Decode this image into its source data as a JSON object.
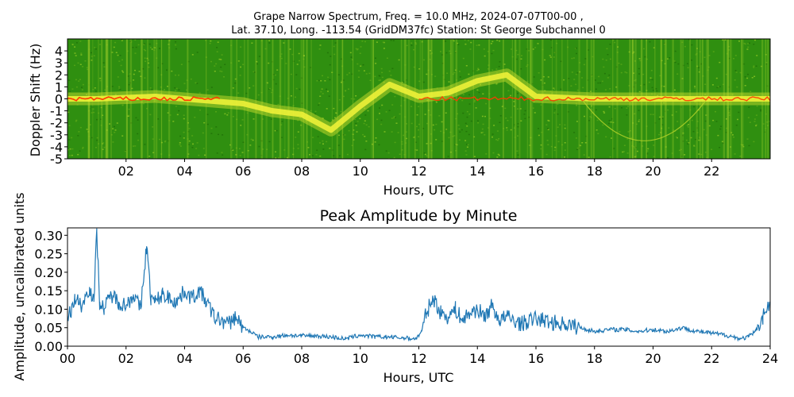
{
  "figure": {
    "title_line1": "Grape Narrow Spectrum, Freq. = 10.0 MHz, 2024-07-07T00-00 ,",
    "title_line2": "Lat.  37.10, Long. -113.54 (GridDM37fc) Station: St George Subchannel 0"
  },
  "chart_data": [
    {
      "type": "heatmap",
      "title": "",
      "xlabel": "Hours, UTC",
      "ylabel": "Doppler Shift (Hz)",
      "xlim": [
        0,
        24
      ],
      "ylim": [
        -5,
        5
      ],
      "x_ticks": [
        "02",
        "04",
        "06",
        "08",
        "10",
        "12",
        "14",
        "16",
        "18",
        "20",
        "22"
      ],
      "x_tick_values": [
        2,
        4,
        6,
        8,
        10,
        12,
        14,
        16,
        18,
        20,
        22
      ],
      "y_ticks": [
        "4",
        "3",
        "2",
        "1",
        "0",
        "-1",
        "-2",
        "-3",
        "-4",
        "-5"
      ],
      "y_tick_values": [
        4,
        3,
        2,
        1,
        0,
        -1,
        -2,
        -3,
        -4,
        -5
      ],
      "colors": {
        "background": "#2f8f10",
        "mid": "#b9d62a",
        "high": "#f4f43a",
        "peak": "#ff3a00"
      },
      "carrier_trace": {
        "x": [
          0,
          1,
          2,
          3,
          4,
          5,
          6,
          7,
          8,
          9,
          10,
          11,
          12,
          13,
          14,
          15,
          16,
          17,
          18,
          19,
          20,
          21,
          22,
          23,
          24
        ],
        "y": [
          0.0,
          0.0,
          0.1,
          0.2,
          0.0,
          -0.2,
          -0.4,
          -1.0,
          -1.3,
          -2.6,
          -0.6,
          1.2,
          0.2,
          0.5,
          1.5,
          2.0,
          0.2,
          0.1,
          0.0,
          0.0,
          0.0,
          0.0,
          0.0,
          0.0,
          0.0
        ]
      }
    },
    {
      "type": "line",
      "title": "Peak Amplitude by Minute",
      "xlabel": "Hours, UTC",
      "ylabel": "Amplitude, uncalibrated units",
      "xlim": [
        0,
        24
      ],
      "ylim": [
        0,
        0.32
      ],
      "x_ticks": [
        "00",
        "02",
        "04",
        "06",
        "08",
        "10",
        "12",
        "14",
        "16",
        "18",
        "20",
        "22",
        "24"
      ],
      "x_tick_values": [
        0,
        2,
        4,
        6,
        8,
        10,
        12,
        14,
        16,
        18,
        20,
        22,
        24
      ],
      "y_ticks": [
        "0.00",
        "0.05",
        "0.10",
        "0.15",
        "0.20",
        "0.25",
        "0.30"
      ],
      "y_tick_values": [
        0,
        0.05,
        0.1,
        0.15,
        0.2,
        0.25,
        0.3
      ],
      "line_color": "#1f77b4",
      "series": [
        {
          "x": [
            0,
            0.25,
            0.5,
            0.75,
            0.9,
            1.0,
            1.1,
            1.25,
            1.5,
            1.75,
            2.0,
            2.25,
            2.5,
            2.7,
            2.85,
            3.0,
            3.25,
            3.5,
            3.75,
            4.0,
            4.25,
            4.5,
            4.75,
            5.0,
            5.25,
            5.5,
            5.75,
            6.0,
            6.25,
            6.5,
            7.0,
            7.5,
            8.0,
            8.5,
            9.0,
            9.5,
            10.0,
            10.5,
            11.0,
            11.5,
            11.9,
            12.1,
            12.25,
            12.5,
            12.75,
            13.0,
            13.25,
            13.5,
            13.75,
            14.0,
            14.25,
            14.5,
            14.75,
            15.0,
            15.5,
            16.0,
            16.5,
            17.0,
            17.5,
            18.0,
            18.5,
            19.0,
            19.5,
            20.0,
            20.5,
            21.0,
            21.5,
            22.0,
            22.5,
            23.0,
            23.25,
            23.5,
            23.75,
            24.0
          ],
          "y": [
            0.07,
            0.13,
            0.11,
            0.16,
            0.12,
            0.31,
            0.12,
            0.1,
            0.14,
            0.12,
            0.11,
            0.14,
            0.1,
            0.27,
            0.13,
            0.12,
            0.14,
            0.13,
            0.12,
            0.15,
            0.13,
            0.15,
            0.12,
            0.08,
            0.07,
            0.06,
            0.08,
            0.05,
            0.04,
            0.025,
            0.025,
            0.03,
            0.028,
            0.028,
            0.025,
            0.02,
            0.03,
            0.025,
            0.025,
            0.022,
            0.02,
            0.04,
            0.09,
            0.13,
            0.09,
            0.08,
            0.1,
            0.07,
            0.09,
            0.1,
            0.08,
            0.11,
            0.07,
            0.08,
            0.06,
            0.075,
            0.065,
            0.06,
            0.05,
            0.04,
            0.045,
            0.045,
            0.04,
            0.045,
            0.04,
            0.05,
            0.04,
            0.035,
            0.03,
            0.02,
            0.025,
            0.04,
            0.08,
            0.12
          ]
        }
      ]
    }
  ]
}
